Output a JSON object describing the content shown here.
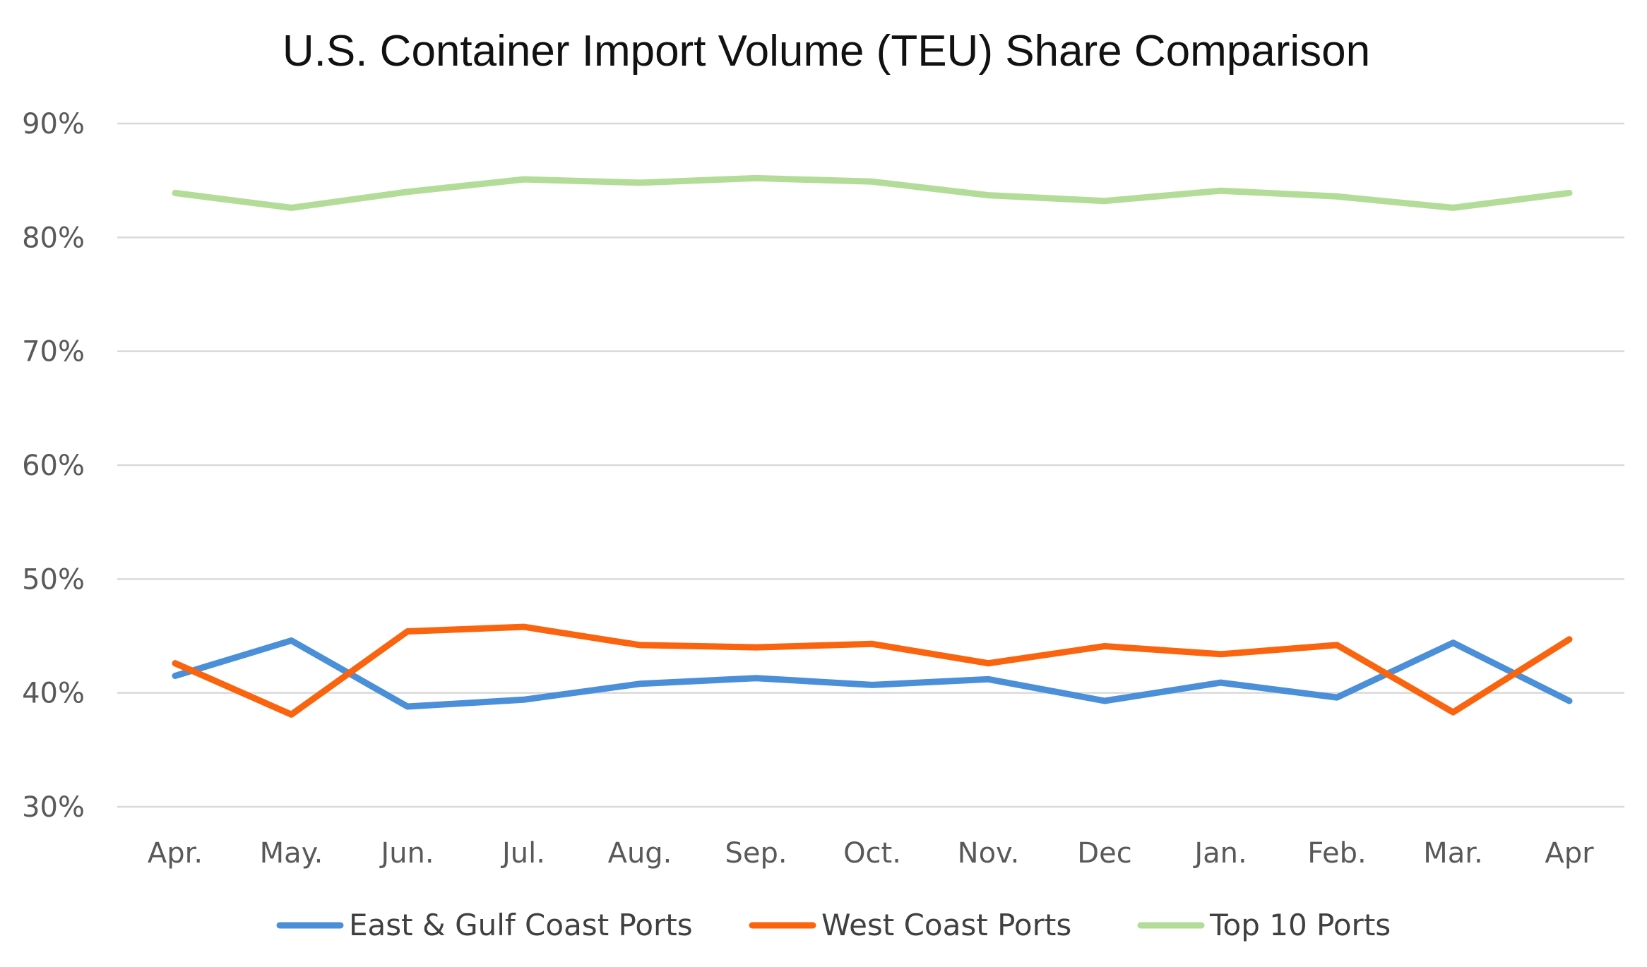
{
  "chart_data": {
    "type": "line",
    "title": "U.S. Container Import Volume (TEU) Share Comparison",
    "xlabel": "",
    "ylabel": "",
    "categories": [
      "Apr.",
      "May.",
      "Jun.",
      "Jul.",
      "Aug.",
      "Sep.",
      "Oct.",
      "Nov.",
      "Dec",
      "Jan.",
      "Feb.",
      "Mar.",
      "Apr"
    ],
    "ylim": [
      30,
      90
    ],
    "yticks": [
      30,
      40,
      50,
      60,
      70,
      80,
      90
    ],
    "ytick_labels": [
      "30%",
      "40%",
      "50%",
      "60%",
      "70%",
      "80%",
      "90%"
    ],
    "grid": "horizontal",
    "legend_position": "bottom",
    "series": [
      {
        "name": "East & Gulf Coast Ports",
        "color": "#4a8fd8",
        "values": [
          41.5,
          44.6,
          38.8,
          39.4,
          40.8,
          41.3,
          40.7,
          41.2,
          39.3,
          40.9,
          39.6,
          44.4,
          39.3
        ]
      },
      {
        "name": "West Coast Ports",
        "color": "#fa640f",
        "values": [
          42.6,
          38.1,
          45.4,
          45.8,
          44.2,
          44.0,
          44.3,
          42.6,
          44.1,
          43.4,
          44.2,
          38.3,
          44.7
        ]
      },
      {
        "name": "Top 10 Ports",
        "color": "#b3dc98",
        "values": [
          83.9,
          82.6,
          84.0,
          85.1,
          84.8,
          85.2,
          84.9,
          83.7,
          83.2,
          84.1,
          83.6,
          82.6,
          83.9
        ]
      }
    ]
  }
}
